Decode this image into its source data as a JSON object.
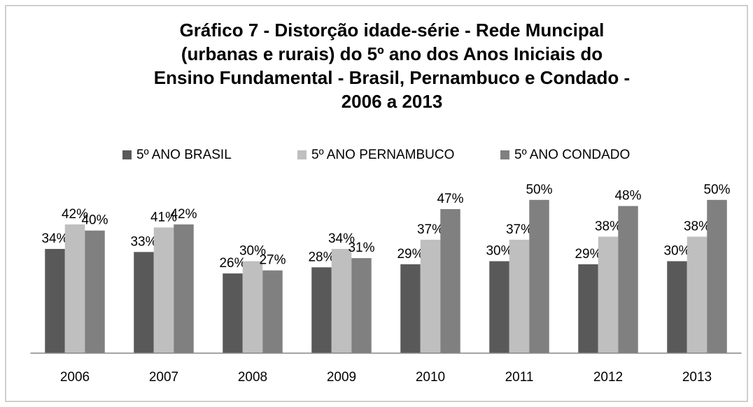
{
  "chart_data": {
    "type": "bar",
    "title": [
      "Gráfico 7 -  Distorção idade-série - Rede Muncipal",
      "(urbanas e rurais) do 5º ano dos Anos Iniciais do",
      "Ensino Fundamental - Brasil, Pernambuco e Condado -",
      "2006 a 2013"
    ],
    "categories": [
      "2006",
      "2007",
      "2008",
      "2009",
      "2010",
      "2011",
      "2012",
      "2013"
    ],
    "series": [
      {
        "name": "5º ANO BRASIL",
        "color": "#595959",
        "values": [
          34,
          33,
          26,
          28,
          29,
          30,
          29,
          30
        ],
        "value_labels": [
          "34%",
          "33%",
          "26%",
          "28%",
          "29%",
          "30%",
          "29%",
          "30%"
        ]
      },
      {
        "name": "5º ANO PERNAMBUCO",
        "color": "#bfbfbf",
        "values": [
          42,
          41,
          30,
          34,
          37,
          37,
          38,
          38
        ],
        "value_labels": [
          "42%",
          "41%",
          "30%",
          "34%",
          "37%",
          "37%",
          "38%",
          "38%"
        ]
      },
      {
        "name": "5º ANO CONDADO",
        "color": "#808080",
        "values": [
          40,
          42,
          27,
          31,
          47,
          50,
          48,
          50
        ],
        "value_labels": [
          "40%",
          "42%",
          "27%",
          "31%",
          "47%",
          "50%",
          "48%",
          "50%"
        ]
      }
    ],
    "ylim": [
      0,
      60
    ],
    "legend": "top"
  }
}
